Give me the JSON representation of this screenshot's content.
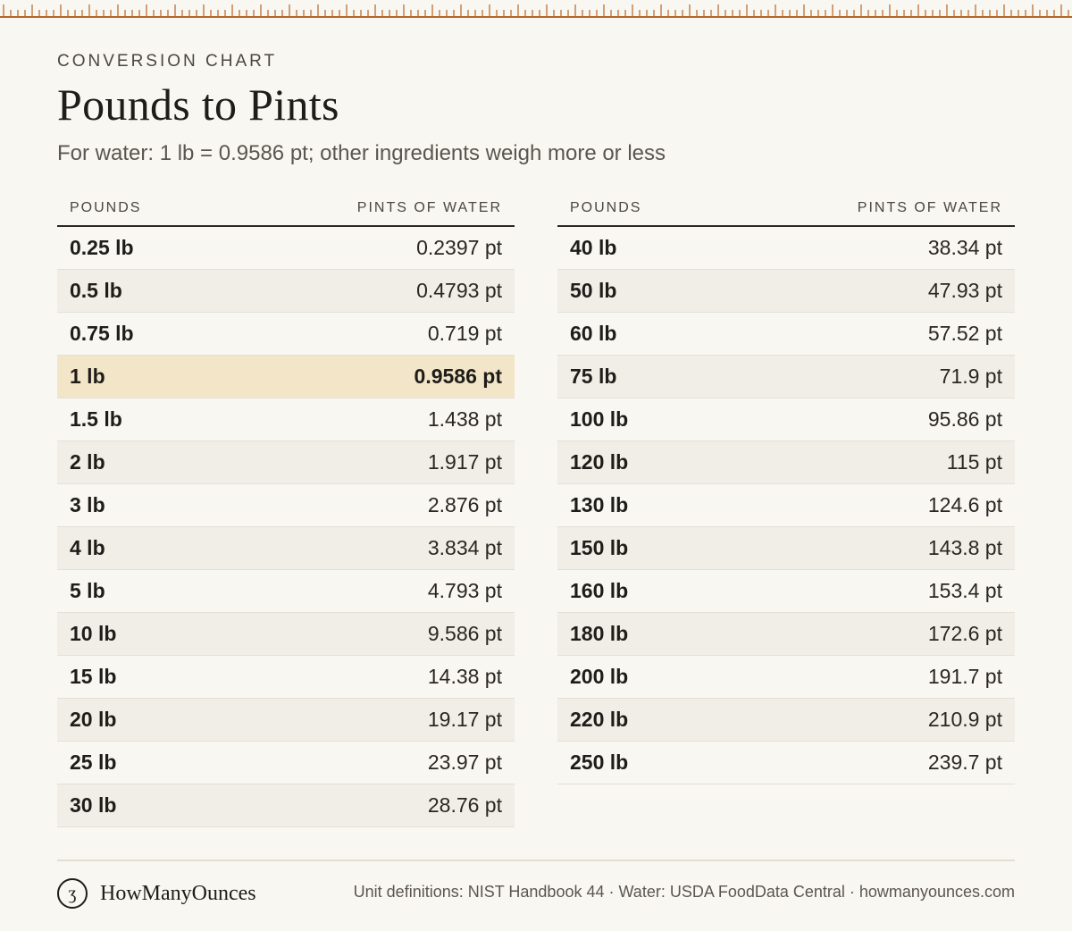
{
  "header": {
    "eyebrow": "CONVERSION CHART",
    "title": "Pounds to Pints",
    "subtitle": "For water: 1 lb = 0.9586 pt; other ingredients weigh more or less"
  },
  "columns": {
    "pounds": "POUNDS",
    "pints": "PINTS OF WATER"
  },
  "left_rows": [
    {
      "lb": "0.25 lb",
      "pt": "0.2397 pt"
    },
    {
      "lb": "0.5 lb",
      "pt": "0.4793 pt"
    },
    {
      "lb": "0.75 lb",
      "pt": "0.719 pt"
    },
    {
      "lb": "1 lb",
      "pt": "0.9586 pt",
      "highlight": true
    },
    {
      "lb": "1.5 lb",
      "pt": "1.438 pt"
    },
    {
      "lb": "2 lb",
      "pt": "1.917 pt"
    },
    {
      "lb": "3 lb",
      "pt": "2.876 pt"
    },
    {
      "lb": "4 lb",
      "pt": "3.834 pt"
    },
    {
      "lb": "5 lb",
      "pt": "4.793 pt"
    },
    {
      "lb": "10 lb",
      "pt": "9.586 pt"
    },
    {
      "lb": "15 lb",
      "pt": "14.38 pt"
    },
    {
      "lb": "20 lb",
      "pt": "19.17 pt"
    },
    {
      "lb": "25 lb",
      "pt": "23.97 pt"
    },
    {
      "lb": "30 lb",
      "pt": "28.76 pt"
    }
  ],
  "right_rows": [
    {
      "lb": "40 lb",
      "pt": "38.34 pt"
    },
    {
      "lb": "50 lb",
      "pt": "47.93 pt"
    },
    {
      "lb": "60 lb",
      "pt": "57.52 pt"
    },
    {
      "lb": "75 lb",
      "pt": "71.9 pt"
    },
    {
      "lb": "100 lb",
      "pt": "95.86 pt"
    },
    {
      "lb": "120 lb",
      "pt": "115 pt"
    },
    {
      "lb": "130 lb",
      "pt": "124.6 pt"
    },
    {
      "lb": "150 lb",
      "pt": "143.8 pt"
    },
    {
      "lb": "160 lb",
      "pt": "153.4 pt"
    },
    {
      "lb": "180 lb",
      "pt": "172.6 pt"
    },
    {
      "lb": "200 lb",
      "pt": "191.7 pt"
    },
    {
      "lb": "220 lb",
      "pt": "210.9 pt"
    },
    {
      "lb": "250 lb",
      "pt": "239.7 pt"
    }
  ],
  "footer": {
    "logo_glyph": "ʒ",
    "brand": "HowManyOunces",
    "sources": "Unit definitions: NIST Handbook 44 · Water: USDA FoodData Central · howmanyounces.com"
  },
  "colors": {
    "background": "#f9f7f2",
    "ruler": "#b5652a",
    "highlight_row": "#f3e6c8",
    "alt_row": "#f1eee7"
  }
}
